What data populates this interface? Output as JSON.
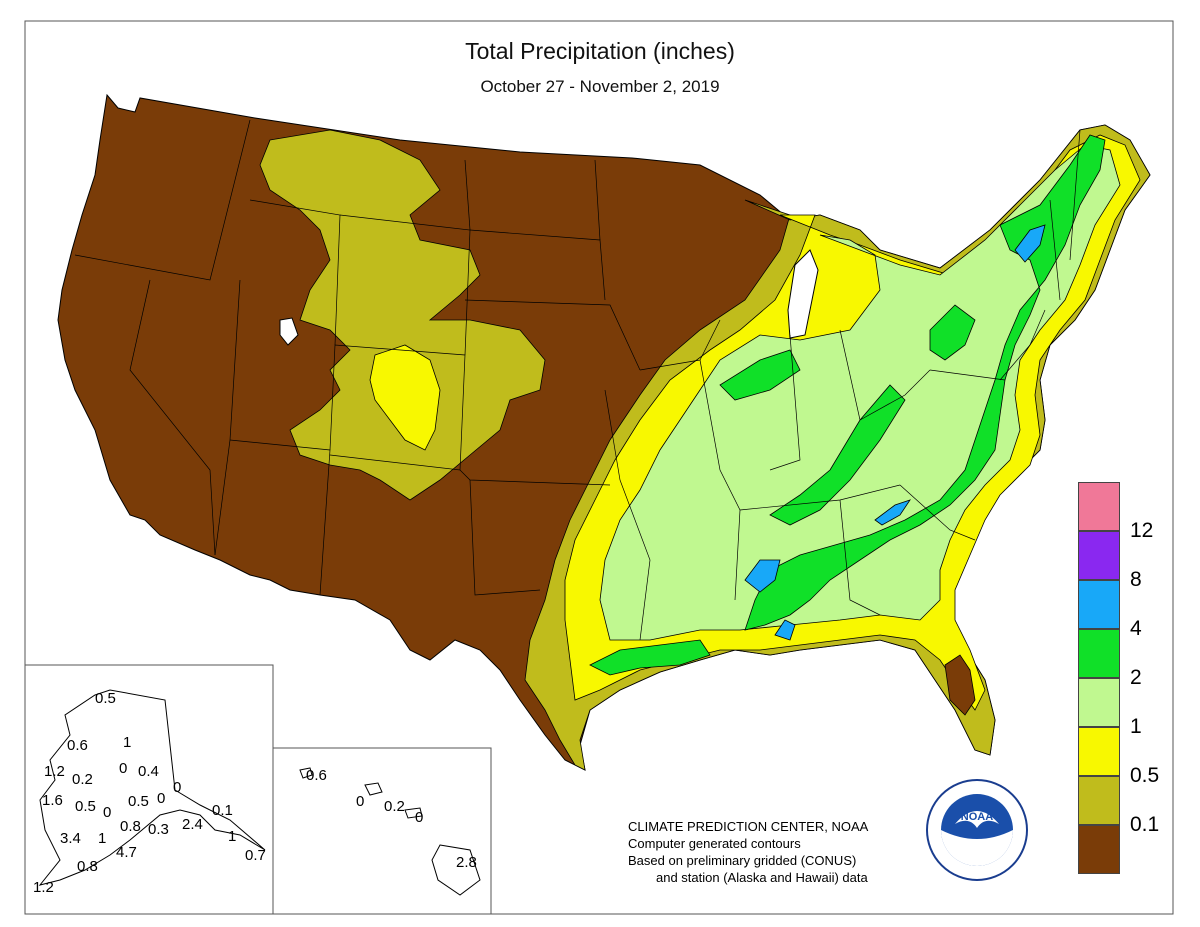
{
  "title": "Total Precipitation (inches)",
  "subtitle": "October 27 - November 2, 2019",
  "legend": {
    "items": [
      {
        "label": "",
        "color": "#f07898"
      },
      {
        "label": "12",
        "color": "#8a28f0"
      },
      {
        "label": "8",
        "color": "#18a8f8"
      },
      {
        "label": "4",
        "color": "#10e028"
      },
      {
        "label": "2",
        "color": "#c0f890"
      },
      {
        "label": "1",
        "color": "#f8f800"
      },
      {
        "label": "0.5",
        "color": "#c0bc1c"
      },
      {
        "label": "0.1",
        "color": "#7a3c08"
      }
    ]
  },
  "credit": {
    "line1": "CLIMATE PREDICTION CENTER, NOAA",
    "line2": "Computer generated contours",
    "line3": "Based on preliminary gridded (CONUS)",
    "line4": "and station (Alaska and Hawaii) data"
  },
  "logo": {
    "icon": "noaa-logo-icon",
    "text": "NOAA",
    "ring_text": "NATIONAL OCEANIC AND ATMOSPHERIC ADMINISTRATION U.S. DEPARTMENT OF COMMERCE"
  },
  "alaska_stations": [
    "0.5",
    "0.6",
    "1",
    "1.2",
    "0.2",
    "0",
    "0.4",
    "0",
    "1.6",
    "0.5",
    "0",
    "0.5",
    "0",
    "0.1",
    "3.4",
    "1",
    "0.8",
    "0.3",
    "2.4",
    "1",
    "0.8",
    "4.7",
    "0.7",
    "1.2"
  ],
  "hawaii_stations": [
    "0.6",
    "0",
    "0.2",
    "0",
    "2.8"
  ]
}
